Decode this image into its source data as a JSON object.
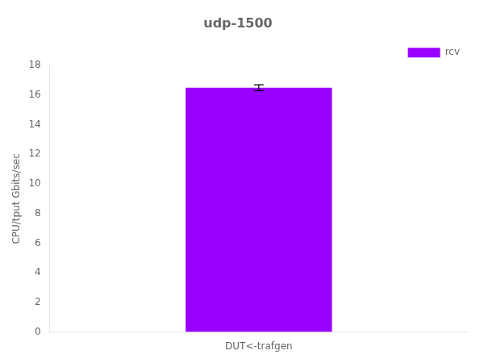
{
  "chart_data": {
    "type": "bar",
    "title": "udp-1500",
    "ylabel": "CPU/tput Gbits/sec",
    "categories": [
      "DUT<-trafgen"
    ],
    "series": [
      {
        "name": "rcv",
        "color": "#9900ff",
        "values": [
          16.5
        ],
        "errors": [
          0.2
        ]
      }
    ],
    "ylim": [
      0,
      18
    ],
    "yticks": [
      0,
      2,
      4,
      6,
      8,
      10,
      12,
      14,
      16,
      18
    ],
    "grid": false,
    "legend": "upper right"
  }
}
